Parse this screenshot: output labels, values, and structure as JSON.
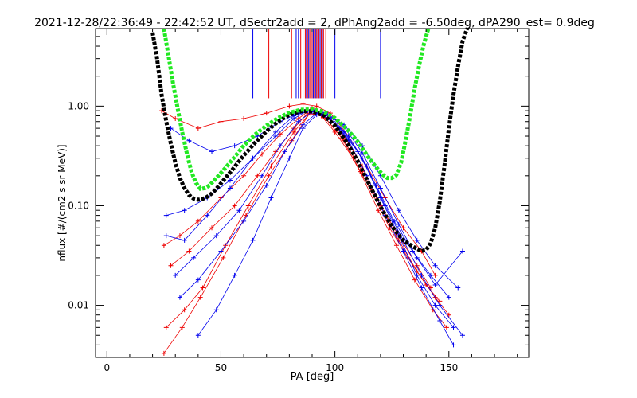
{
  "chart_data": {
    "type": "scatter",
    "title": "2021-12-28/22:36:49 - 22:42:52 UT, dSectr2add = 2, dPhAng2add = -6.50deg, dPA290_est=   0.9deg",
    "xlabel": "PA [deg]",
    "ylabel": "nflux [#/(cm2 s sr MeV)]",
    "xlim": [
      -5,
      185
    ],
    "ylim": [
      0.003,
      6.0
    ],
    "yscale": "log",
    "grid": false,
    "x_ticks": [
      {
        "value": 0,
        "label": "0"
      },
      {
        "value": 50,
        "label": "50"
      },
      {
        "value": 100,
        "label": "100"
      },
      {
        "value": 150,
        "label": "150"
      }
    ],
    "y_ticks": [
      {
        "value": 0.01,
        "label": "0.01"
      },
      {
        "value": 0.1,
        "label": "0.10"
      },
      {
        "value": 1.0,
        "label": "1.00"
      }
    ],
    "series": [
      {
        "color": "#000000",
        "style": "thick-dashed-curve",
        "x": [
          20,
          22,
          24,
          26,
          28,
          30,
          32,
          34,
          36,
          38,
          40,
          42,
          44,
          46,
          48,
          50,
          55,
          60,
          65,
          70,
          75,
          80,
          85,
          90,
          95,
          100,
          105,
          110,
          115,
          120,
          125,
          130,
          135,
          138,
          140,
          142,
          144,
          146,
          148,
          150,
          152,
          154,
          156,
          158
        ],
        "y": [
          5.5,
          3.0,
          1.3,
          0.7,
          0.42,
          0.27,
          0.19,
          0.15,
          0.128,
          0.118,
          0.115,
          0.117,
          0.123,
          0.133,
          0.148,
          0.168,
          0.23,
          0.32,
          0.43,
          0.56,
          0.7,
          0.82,
          0.89,
          0.89,
          0.81,
          0.64,
          0.44,
          0.28,
          0.165,
          0.098,
          0.062,
          0.045,
          0.038,
          0.035,
          0.036,
          0.042,
          0.06,
          0.11,
          0.25,
          0.6,
          1.3,
          2.5,
          4.5,
          6.5
        ]
      },
      {
        "color": "#22e822",
        "style": "thick-dashed-curve",
        "x": [
          25,
          27,
          29,
          31,
          33,
          35,
          37,
          39,
          41,
          43,
          45,
          48,
          52,
          56,
          60,
          65,
          70,
          75,
          80,
          85,
          90,
          95,
          100,
          105,
          110,
          115,
          118,
          121,
          123,
          125,
          127,
          129,
          131,
          133,
          135,
          137,
          139,
          141
        ],
        "y": [
          6.0,
          3.2,
          1.7,
          0.95,
          0.55,
          0.34,
          0.22,
          0.17,
          0.148,
          0.15,
          0.16,
          0.19,
          0.24,
          0.31,
          0.4,
          0.52,
          0.64,
          0.76,
          0.86,
          0.92,
          0.93,
          0.88,
          0.76,
          0.6,
          0.44,
          0.3,
          0.245,
          0.205,
          0.19,
          0.19,
          0.205,
          0.27,
          0.45,
          0.8,
          1.5,
          2.6,
          4.2,
          6.0
        ]
      }
    ],
    "red_lines": [
      {
        "x": [
          25,
          32,
          40,
          50,
          60,
          68,
          76,
          84,
          90,
          96,
          104,
          112,
          120,
          128,
          136,
          142
        ],
        "y": [
          0.04,
          0.05,
          0.07,
          0.12,
          0.2,
          0.33,
          0.52,
          0.75,
          0.95,
          0.75,
          0.45,
          0.22,
          0.1,
          0.05,
          0.025,
          0.015
        ]
      },
      {
        "x": [
          28,
          36,
          46,
          56,
          66,
          74,
          82,
          88,
          94,
          100,
          108,
          116,
          124,
          132,
          140,
          146
        ],
        "y": [
          0.025,
          0.035,
          0.06,
          0.1,
          0.2,
          0.35,
          0.6,
          0.85,
          0.8,
          0.55,
          0.3,
          0.14,
          0.06,
          0.03,
          0.016,
          0.011
        ]
      },
      {
        "x": [
          24,
          30,
          40,
          50,
          60,
          70,
          80,
          86,
          92,
          98,
          106,
          114,
          122,
          130,
          138,
          144
        ],
        "y": [
          0.9,
          0.75,
          0.6,
          0.7,
          0.75,
          0.85,
          1.0,
          1.05,
          1.0,
          0.85,
          0.5,
          0.25,
          0.12,
          0.06,
          0.035,
          0.02
        ]
      },
      {
        "x": [
          26,
          34,
          42,
          52,
          62,
          72,
          82,
          90,
          96,
          104,
          112,
          120,
          128,
          136,
          144,
          150
        ],
        "y": [
          0.006,
          0.009,
          0.015,
          0.04,
          0.1,
          0.25,
          0.55,
          0.9,
          0.85,
          0.5,
          0.25,
          0.1,
          0.045,
          0.022,
          0.012,
          0.008
        ]
      },
      {
        "x": [
          25,
          33,
          41,
          51,
          61,
          71,
          81,
          89,
          95,
          103,
          111,
          119,
          127,
          135,
          143,
          149
        ],
        "y": [
          0.0033,
          0.006,
          0.012,
          0.03,
          0.08,
          0.2,
          0.45,
          0.85,
          0.8,
          0.48,
          0.22,
          0.09,
          0.04,
          0.018,
          0.009,
          0.006
        ]
      }
    ],
    "blue_lines": [
      {
        "x": [
          26,
          34,
          44,
          54,
          64,
          74,
          82,
          88,
          94,
          102,
          110,
          118,
          126,
          134,
          142,
          150
        ],
        "y": [
          0.08,
          0.09,
          0.12,
          0.18,
          0.3,
          0.5,
          0.75,
          0.9,
          0.85,
          0.6,
          0.35,
          0.16,
          0.07,
          0.035,
          0.02,
          0.012
        ]
      },
      {
        "x": [
          30,
          38,
          48,
          58,
          68,
          76,
          84,
          90,
          96,
          104,
          112,
          120,
          128,
          136,
          144,
          152
        ],
        "y": [
          0.02,
          0.03,
          0.05,
          0.09,
          0.2,
          0.4,
          0.7,
          0.88,
          0.82,
          0.55,
          0.3,
          0.12,
          0.05,
          0.02,
          0.01,
          0.006
        ]
      },
      {
        "x": [
          28,
          36,
          46,
          56,
          66,
          76,
          84,
          90,
          96,
          104,
          112,
          120,
          128,
          136,
          144,
          154
        ],
        "y": [
          0.6,
          0.45,
          0.35,
          0.4,
          0.5,
          0.7,
          0.85,
          0.9,
          0.85,
          0.65,
          0.4,
          0.2,
          0.09,
          0.045,
          0.025,
          0.015
        ]
      },
      {
        "x": [
          32,
          40,
          50,
          60,
          70,
          78,
          86,
          92,
          98,
          106,
          114,
          122,
          130,
          138,
          146,
          156
        ],
        "y": [
          0.012,
          0.018,
          0.035,
          0.07,
          0.16,
          0.35,
          0.65,
          0.85,
          0.78,
          0.5,
          0.25,
          0.1,
          0.045,
          0.02,
          0.01,
          0.005
        ]
      },
      {
        "x": [
          40,
          48,
          56,
          64,
          72,
          80,
          86,
          92,
          98,
          106,
          114,
          122,
          130,
          138,
          146,
          152
        ],
        "y": [
          0.005,
          0.009,
          0.02,
          0.045,
          0.12,
          0.3,
          0.6,
          0.82,
          0.75,
          0.45,
          0.2,
          0.08,
          0.035,
          0.015,
          0.007,
          0.004
        ]
      },
      {
        "x": [
          26,
          34,
          44,
          54,
          64,
          74,
          82,
          90,
          96,
          104,
          112,
          120,
          128,
          136,
          144,
          156
        ],
        "y": [
          0.05,
          0.045,
          0.08,
          0.15,
          0.3,
          0.55,
          0.8,
          0.92,
          0.86,
          0.62,
          0.34,
          0.15,
          0.065,
          0.03,
          0.016,
          0.035
        ]
      }
    ],
    "red_vlines": [
      71,
      81,
      85,
      87,
      88,
      89,
      90,
      91,
      92,
      93,
      94,
      95,
      96
    ],
    "blue_vlines": [
      64,
      79,
      83,
      84,
      86,
      87.5,
      88.5,
      89.5,
      90.5,
      91.5,
      92.5,
      93.5,
      94.5,
      100,
      120
    ]
  }
}
